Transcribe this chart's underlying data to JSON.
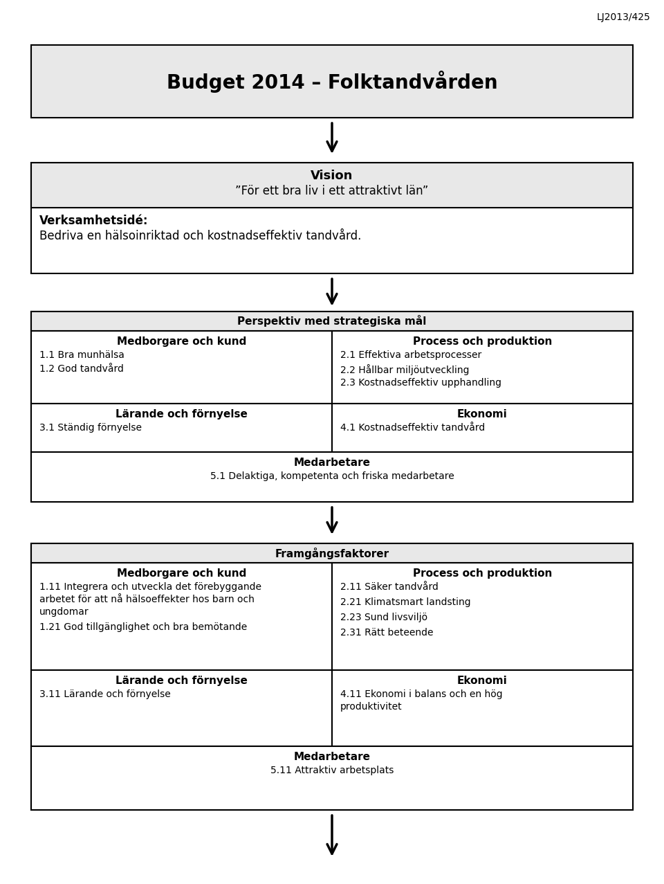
{
  "page_ref": "LJ2013/425",
  "title": "Budget 2014 – Folktandvården",
  "vision_title": "Vision",
  "vision_subtitle": "”För ett bra liv i ett attraktivt län”",
  "verksamhet_line1": "Verksamhetsidé:",
  "verksamhet_line2": "Bedriva en hälsoinriktad och kostnadseffektiv tandvård.",
  "box2_header": "Perspektiv med strategiska mål",
  "box2_col1_header": "Medborgare och kund",
  "box2_col1_items": [
    "1.1 Bra munhälsa",
    "1.2 God tandvård"
  ],
  "box2_col2_header": "Process och produktion",
  "box2_col2_items": [
    "2.1 Effektiva arbetsprocesser",
    "2.2 Hållbar miljöutveckling",
    "2.3 Kostnadseffektiv upphandling"
  ],
  "box2_col3_header": "Lärande och förnyelse",
  "box2_col3_items": [
    "3.1 Ständig förnyelse"
  ],
  "box2_col4_header": "Ekonomi",
  "box2_col4_items": [
    "4.1 Kostnadseffektiv tandvård"
  ],
  "box2_bottom_header": "Medarbetare",
  "box2_bottom_item": "5.1 Delaktiga, kompetenta och friska medarbetare",
  "box3_header": "Framgångsfaktorer",
  "box3_col1_header": "Medborgare och kund",
  "box3_col1_item1_lines": [
    "1.11 Integrera och utveckla det förebyggande",
    "arbetet för att nå hälsoeffekter hos barn och",
    "ungdomar"
  ],
  "box3_col1_item2": "1.21 God tillgänglighet och bra bemötande",
  "box3_col2_header": "Process och produktion",
  "box3_col2_items": [
    "2.11 Säker tandvård",
    "2.21 Klimatsmart landsting",
    "2.23 Sund livsviljö",
    "2.31 Rätt beteende"
  ],
  "box3_col3_header": "Lärande och förnyelse",
  "box3_col3_items": [
    "3.11 Lärande och förnyelse"
  ],
  "box3_col4_header": "Ekonomi",
  "box3_col4_item_lines": [
    "4.11 Ekonomi i balans och en hög",
    "produktivitet"
  ],
  "box3_bottom_header": "Medarbetare",
  "box3_bottom_item": "5.11 Attraktiv arbetsplats",
  "bg_color": "#ffffff",
  "box_fill": "#e8e8e8",
  "box_border": "#000000",
  "white": "#ffffff",
  "text_color": "#000000"
}
